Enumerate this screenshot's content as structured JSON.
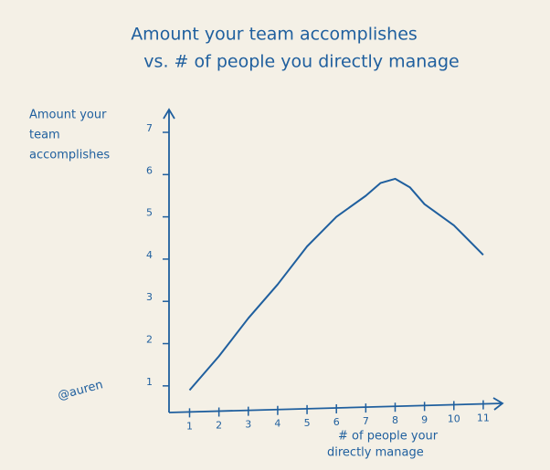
{
  "chart_data": {
    "type": "line",
    "title": [
      "Amount your team accomplishes",
      "vs. # of people you directly manage"
    ],
    "y_label": [
      "Amount your",
      "team",
      "accomplishes"
    ],
    "x_label": [
      "# of people your",
      "directly manage"
    ],
    "annotation": "@auren",
    "x": [
      1,
      2,
      3,
      4,
      5,
      6,
      7,
      7.5,
      8,
      8.5,
      9,
      10,
      11
    ],
    "values": [
      0.9,
      1.7,
      2.6,
      3.4,
      4.3,
      5.0,
      5.5,
      5.8,
      5.9,
      5.7,
      5.3,
      4.8,
      4.1
    ],
    "color": "#1f5f9e",
    "xlim": [
      0.3,
      11.5
    ],
    "xticks": [
      1,
      2,
      3,
      4,
      5,
      6,
      7,
      8,
      9,
      10,
      11
    ],
    "ylim": [
      0.37,
      7.54
    ],
    "yticks": [
      1,
      2,
      3,
      4,
      5,
      6,
      7
    ],
    "grid": false
  }
}
